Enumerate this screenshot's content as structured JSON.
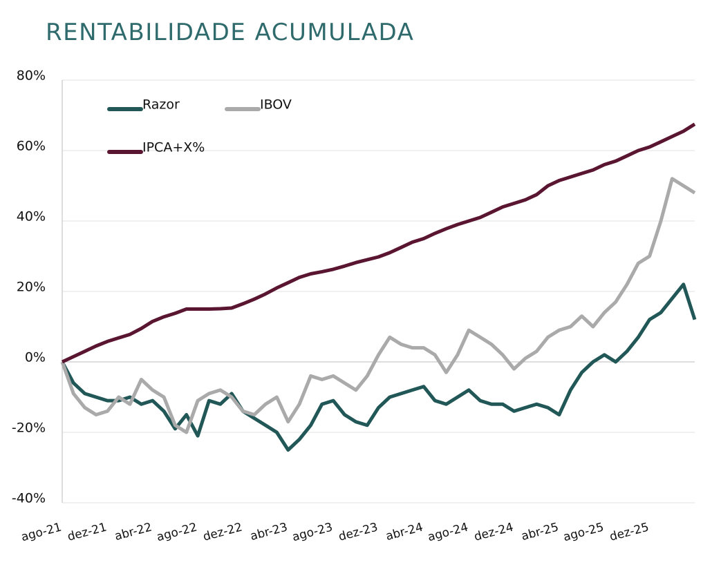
{
  "chart_data": {
    "type": "line",
    "title": "RENTABILIDADE ACUMULADA",
    "categories": [
      "ago-21",
      null,
      null,
      null,
      "dez-21",
      null,
      null,
      null,
      "abr-22",
      null,
      null,
      null,
      "ago-22",
      null,
      null,
      null,
      "dez-22",
      null,
      null,
      null,
      "abr-23",
      null,
      null,
      null,
      "ago-23",
      null,
      null,
      null,
      "dez-23",
      null,
      null,
      null,
      "abr-24",
      null,
      null,
      null,
      "ago-24",
      null,
      null,
      null,
      "dez-24",
      null,
      null,
      null,
      "abr-25",
      null,
      null,
      null,
      "ago-25",
      null,
      null,
      null,
      "dez-25",
      null,
      null,
      null,
      null
    ],
    "series": [
      {
        "name": "Razor",
        "color": "#215757",
        "values": [
          0,
          -6,
          -9,
          -10,
          -11,
          -11,
          -10,
          -12,
          -11,
          -14,
          -19,
          -15,
          -21,
          -11,
          -12,
          -9,
          -14,
          -16,
          -18,
          -20,
          -25,
          -22,
          -18,
          -12,
          -11,
          -15,
          -17,
          -18,
          -13,
          -10,
          -9,
          -8,
          -7,
          -11,
          -12,
          -10,
          -8,
          -11,
          -12,
          -12,
          -14,
          -13,
          -12,
          -13,
          -15,
          -8,
          -3,
          0,
          2,
          0,
          3,
          7,
          12,
          14,
          18,
          22,
          12
        ]
      },
      {
        "name": "IBOV",
        "color": "#aaaaaa",
        "values": [
          0,
          -9,
          -13,
          -15,
          -14,
          -10,
          -12,
          -5,
          -8,
          -10,
          -18,
          -20,
          -11,
          -9,
          -8,
          -10,
          -14,
          -15,
          -12,
          -10,
          -17,
          -12,
          -4,
          -5,
          -4,
          -6,
          -8,
          -4,
          2,
          7,
          5,
          4,
          4,
          2,
          -3,
          2,
          9,
          7,
          5,
          2,
          -2,
          1,
          3,
          7,
          9,
          10,
          13,
          10,
          14,
          17,
          22,
          28,
          30,
          40,
          52,
          50,
          48
        ]
      },
      {
        "name": "IPCA+X%",
        "color": "#5a1530",
        "values": [
          0,
          1.5,
          3,
          4.5,
          5.8,
          6.8,
          7.8,
          9.5,
          11.5,
          12.8,
          13.8,
          15,
          15,
          15,
          15.1,
          15.3,
          16.5,
          17.8,
          19.3,
          21,
          22.5,
          24,
          25,
          25.6,
          26.3,
          27.2,
          28.2,
          29,
          29.8,
          31,
          32.5,
          34,
          35,
          36.5,
          37.8,
          39,
          40,
          41,
          42.5,
          44,
          45,
          46,
          47.5,
          50,
          51.5,
          52.5,
          53.5,
          54.5,
          56,
          57,
          58.5,
          60,
          61,
          62.5,
          64,
          65.5,
          67.5
        ]
      }
    ],
    "ylim": [
      -40,
      80
    ],
    "yticks": [
      {
        "value": -40,
        "label": "-40%"
      },
      {
        "value": -20,
        "label": "-20%"
      },
      {
        "value": 0,
        "label": "0%"
      },
      {
        "value": 20,
        "label": "20%"
      },
      {
        "value": 40,
        "label": "40%"
      },
      {
        "value": 60,
        "label": "60%"
      },
      {
        "value": 80,
        "label": "80%"
      }
    ],
    "grid": true
  }
}
